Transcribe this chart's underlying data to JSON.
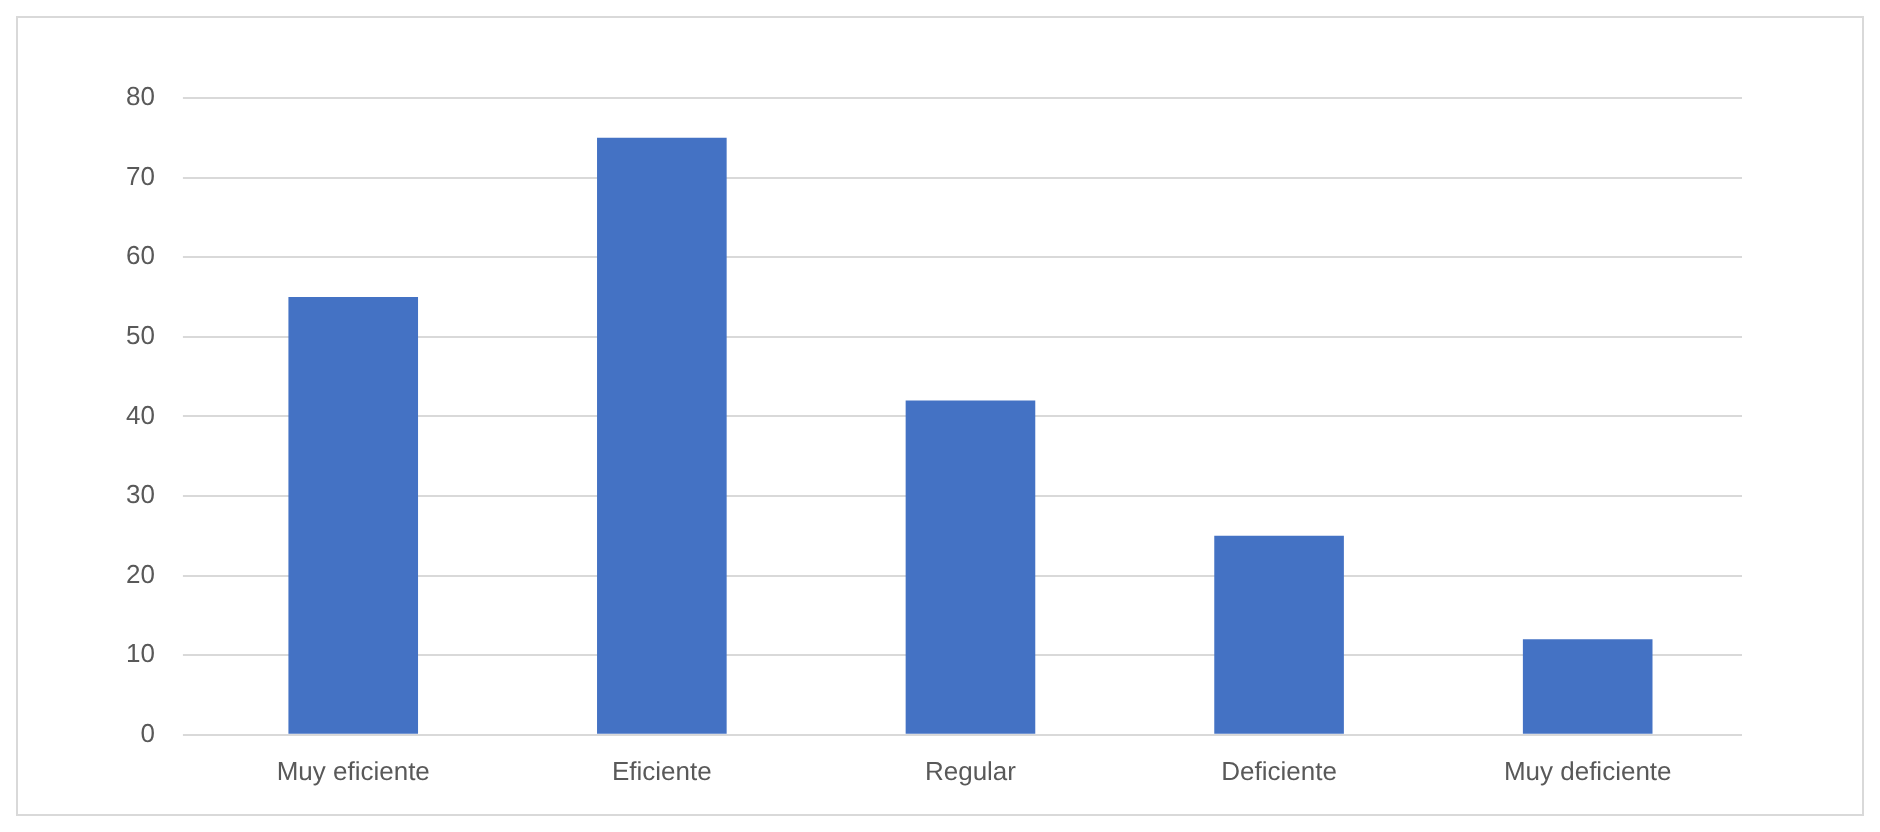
{
  "chart_data": {
    "type": "bar",
    "categories": [
      "Muy eficiente",
      "Eficiente",
      "Regular",
      "Deficiente",
      "Muy deficiente"
    ],
    "values": [
      55,
      75,
      42,
      25,
      12
    ],
    "color": "#4472c4",
    "ylim": [
      0,
      80
    ],
    "yticks": [
      0,
      10,
      20,
      30,
      40,
      50,
      60,
      70,
      80
    ],
    "grid": "y",
    "legend": false
  }
}
